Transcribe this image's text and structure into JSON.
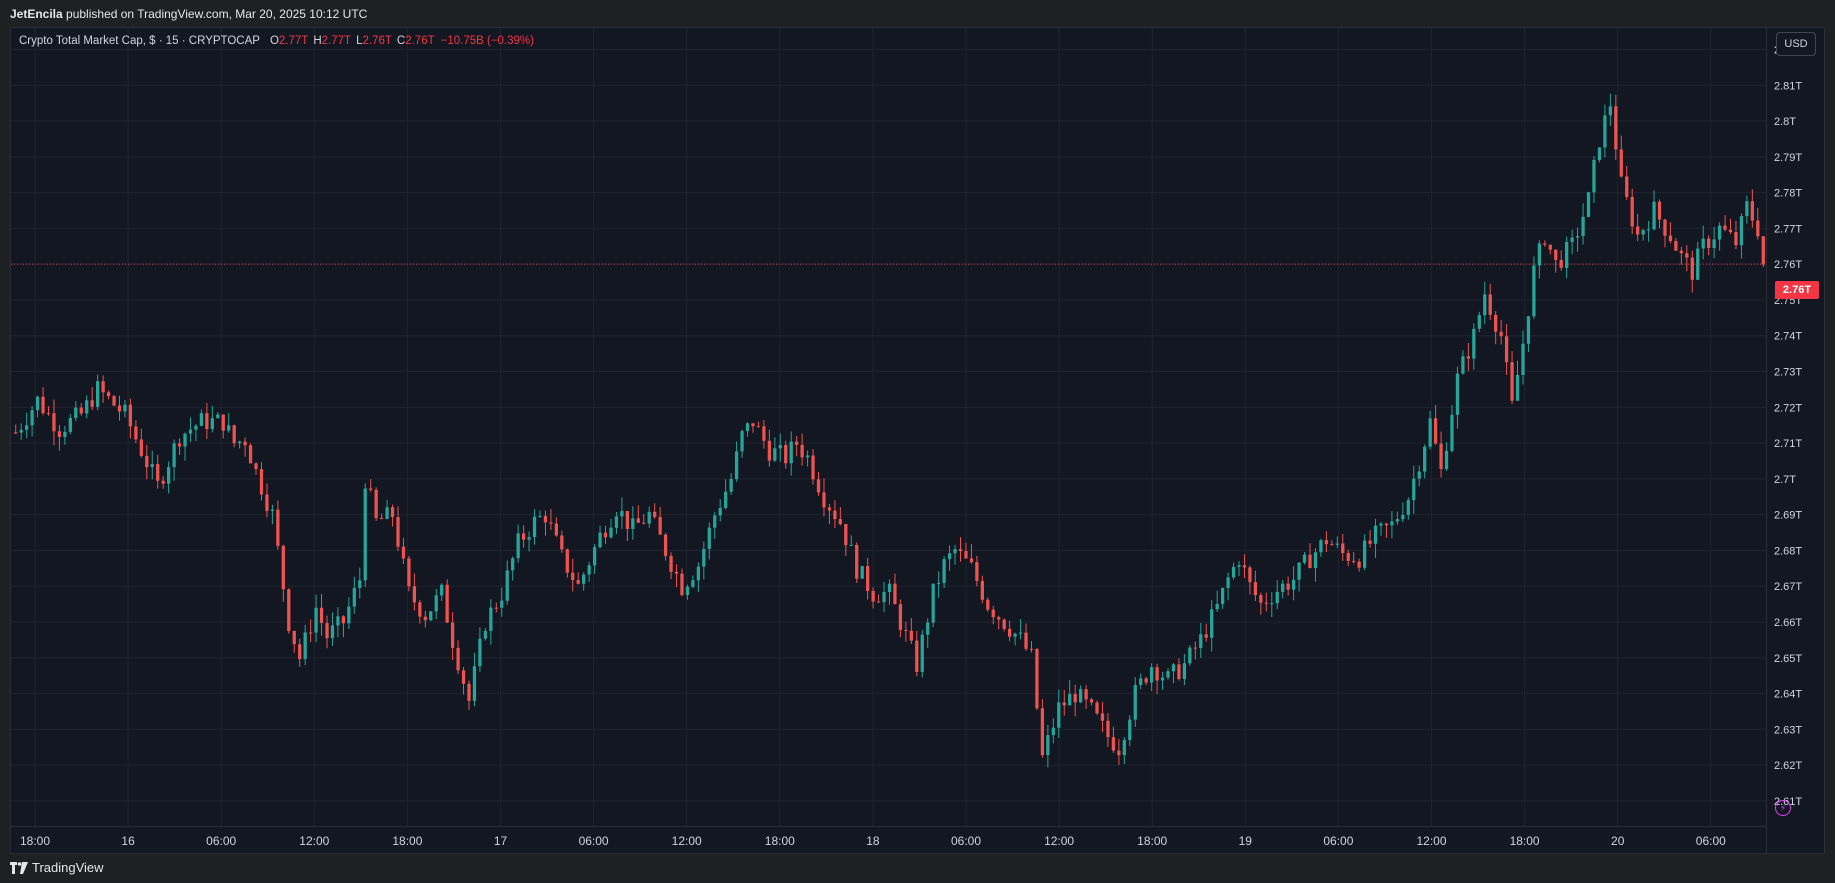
{
  "header": {
    "author": "JetEncila",
    "published_text": " published on TradingView.com, Mar 20, 2025 10:12 UTC"
  },
  "legend": {
    "symbol": "Crypto Total Market Cap, $ · 15 · CRYPTOCAP",
    "open_label": "O",
    "open_value": "2.77T",
    "high_label": "H",
    "high_value": "2.77T",
    "low_label": "L",
    "low_value": "2.76T",
    "close_label": "C",
    "close_value": "2.76T",
    "change": "−10.75B (−0.39%)"
  },
  "currency_button": "USD",
  "last_price_label": "2.76T",
  "footer": {
    "brand": "TradingView"
  },
  "colors": {
    "up": "#26a69a",
    "down": "#ef5350",
    "background": "#131722",
    "grid": "#1f2330",
    "last_price": "#f23645",
    "text": "#d1d4dc"
  },
  "chart_data": {
    "type": "candlestick",
    "title": "Crypto Total Market Cap, $ · 15 · CRYPTOCAP",
    "timeframe": "15",
    "y_unit": "trillion USD",
    "ylim": [
      2.603,
      2.826
    ],
    "y_ticks": [
      "2.82T",
      "2.81T",
      "2.8T",
      "2.79T",
      "2.78T",
      "2.77T",
      "2.76T",
      "2.75T",
      "2.74T",
      "2.73T",
      "2.72T",
      "2.71T",
      "2.7T",
      "2.69T",
      "2.68T",
      "2.67T",
      "2.66T",
      "2.65T",
      "2.64T",
      "2.63T",
      "2.62T",
      "2.61T"
    ],
    "y_tick_values": [
      2.82,
      2.81,
      2.8,
      2.79,
      2.78,
      2.77,
      2.76,
      2.75,
      2.74,
      2.73,
      2.72,
      2.71,
      2.7,
      2.69,
      2.68,
      2.67,
      2.66,
      2.65,
      2.64,
      2.63,
      2.62,
      2.61
    ],
    "x_labels": [
      "18:00",
      "16",
      "06:00",
      "12:00",
      "18:00",
      "17",
      "06:00",
      "12:00",
      "18:00",
      "18",
      "06:00",
      "12:00",
      "18:00",
      "19",
      "06:00",
      "12:00",
      "18:00",
      "20",
      "06:00"
    ],
    "last_price": 2.76,
    "close_path": [
      [
        0,
        2.713
      ],
      [
        4,
        2.722
      ],
      [
        8,
        2.714
      ],
      [
        12,
        2.718
      ],
      [
        15,
        2.725
      ],
      [
        20,
        2.718
      ],
      [
        26,
        2.698
      ],
      [
        30,
        2.712
      ],
      [
        34,
        2.716
      ],
      [
        38,
        2.716
      ],
      [
        40,
        2.71
      ],
      [
        42,
        2.711
      ],
      [
        44,
        2.702
      ],
      [
        47,
        2.69
      ],
      [
        50,
        2.66
      ],
      [
        52,
        2.65
      ],
      [
        55,
        2.664
      ],
      [
        57,
        2.656
      ],
      [
        60,
        2.66
      ],
      [
        63,
        2.672
      ],
      [
        64,
        2.7
      ],
      [
        66,
        2.688
      ],
      [
        69,
        2.69
      ],
      [
        72,
        2.668
      ],
      [
        75,
        2.662
      ],
      [
        78,
        2.668
      ],
      [
        80,
        2.655
      ],
      [
        83,
        2.638
      ],
      [
        86,
        2.66
      ],
      [
        89,
        2.668
      ],
      [
        92,
        2.682
      ],
      [
        95,
        2.688
      ],
      [
        97,
        2.69
      ],
      [
        100,
        2.678
      ],
      [
        103,
        2.67
      ],
      [
        107,
        2.684
      ],
      [
        110,
        2.692
      ],
      [
        113,
        2.686
      ],
      [
        116,
        2.69
      ],
      [
        119,
        2.68
      ],
      [
        122,
        2.67
      ],
      [
        125,
        2.676
      ],
      [
        128,
        2.69
      ],
      [
        131,
        2.7
      ],
      [
        133,
        2.712
      ],
      [
        135,
        2.716
      ],
      [
        138,
        2.708
      ],
      [
        141,
        2.706
      ],
      [
        143,
        2.71
      ],
      [
        145,
        2.706
      ],
      [
        148,
        2.695
      ],
      [
        151,
        2.688
      ],
      [
        154,
        2.675
      ],
      [
        157,
        2.668
      ],
      [
        160,
        2.668
      ],
      [
        162,
        2.66
      ],
      [
        165,
        2.648
      ],
      [
        168,
        2.668
      ],
      [
        170,
        2.676
      ],
      [
        172,
        2.68
      ],
      [
        175,
        2.675
      ],
      [
        178,
        2.665
      ],
      [
        181,
        2.66
      ],
      [
        184,
        2.655
      ],
      [
        186,
        2.65
      ],
      [
        188,
        2.622
      ],
      [
        191,
        2.636
      ],
      [
        194,
        2.64
      ],
      [
        197,
        2.635
      ],
      [
        200,
        2.628
      ],
      [
        202,
        2.625
      ],
      [
        205,
        2.64
      ],
      [
        208,
        2.648
      ],
      [
        211,
        2.644
      ],
      [
        214,
        2.648
      ],
      [
        217,
        2.655
      ],
      [
        220,
        2.664
      ],
      [
        222,
        2.672
      ],
      [
        224,
        2.678
      ],
      [
        226,
        2.67
      ],
      [
        228,
        2.665
      ],
      [
        231,
        2.669
      ],
      [
        234,
        2.672
      ],
      [
        237,
        2.678
      ],
      [
        240,
        2.683
      ],
      [
        243,
        2.679
      ],
      [
        246,
        2.678
      ],
      [
        249,
        2.684
      ],
      [
        252,
        2.687
      ],
      [
        255,
        2.695
      ],
      [
        257,
        2.705
      ],
      [
        259,
        2.716
      ],
      [
        261,
        2.702
      ],
      [
        264,
        2.728
      ],
      [
        267,
        2.74
      ],
      [
        269,
        2.752
      ],
      [
        272,
        2.74
      ],
      [
        274,
        2.72
      ],
      [
        276,
        2.738
      ],
      [
        278,
        2.758
      ],
      [
        280,
        2.768
      ],
      [
        282,
        2.76
      ],
      [
        285,
        2.765
      ],
      [
        288,
        2.778
      ],
      [
        290,
        2.795
      ],
      [
        292,
        2.805
      ],
      [
        294,
        2.782
      ],
      [
        297,
        2.768
      ],
      [
        300,
        2.775
      ],
      [
        303,
        2.768
      ],
      [
        305,
        2.762
      ],
      [
        307,
        2.758
      ],
      [
        309,
        2.765
      ],
      [
        312,
        2.77
      ],
      [
        315,
        2.766
      ],
      [
        317,
        2.776
      ],
      [
        319,
        2.77
      ],
      [
        320,
        2.76
      ]
    ]
  }
}
